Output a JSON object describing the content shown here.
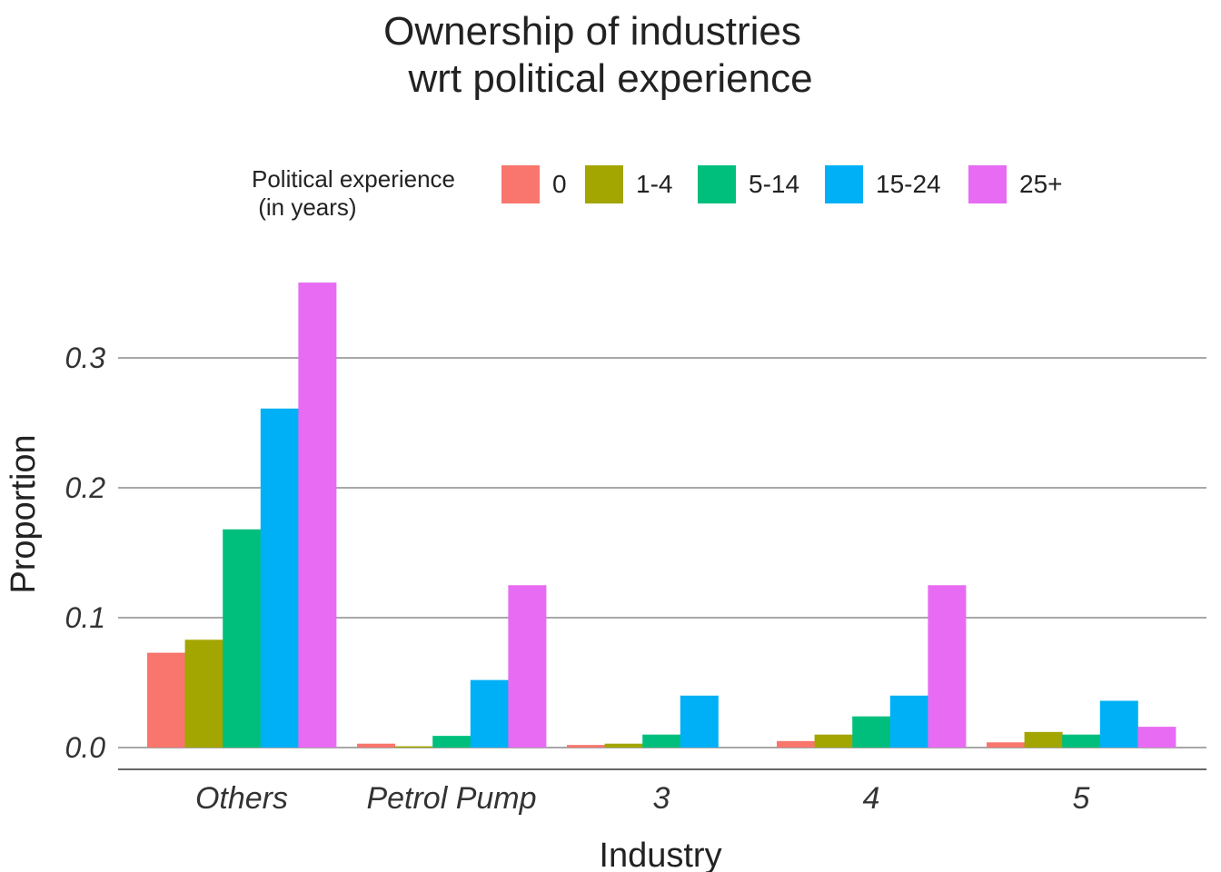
{
  "chart_data": {
    "type": "bar",
    "title": "Ownership of industries",
    "subtitle": "wrt political experience",
    "xlabel": "Industry",
    "ylabel": "Proportion",
    "ylim": [
      -0.016,
      0.38
    ],
    "yticks": [
      0.0,
      0.1,
      0.2,
      0.3
    ],
    "ytick_labels": [
      "0.0",
      "0.1",
      "0.2",
      "0.3"
    ],
    "grid": "horizontal major",
    "legend_position": "top",
    "legend_title": "Political experience\n (in years)",
    "categories": [
      "Others",
      "Petrol Pump",
      "3",
      "4",
      "5"
    ],
    "series": [
      {
        "name": "0",
        "color": "#F8766D",
        "values": [
          0.073,
          0.003,
          0.002,
          0.005,
          0.004
        ]
      },
      {
        "name": "1-4",
        "color": "#A3A500",
        "values": [
          0.083,
          0.001,
          0.003,
          0.01,
          0.012
        ]
      },
      {
        "name": "5-14",
        "color": "#00BF7D",
        "values": [
          0.168,
          0.009,
          0.01,
          0.024,
          0.01
        ]
      },
      {
        "name": "15-24",
        "color": "#00B0F6",
        "values": [
          0.261,
          0.052,
          0.04,
          0.04,
          0.036
        ]
      },
      {
        "name": "25+",
        "color": "#E76BF3",
        "values": [
          0.358,
          0.125,
          null,
          0.125,
          0.016
        ]
      }
    ]
  }
}
